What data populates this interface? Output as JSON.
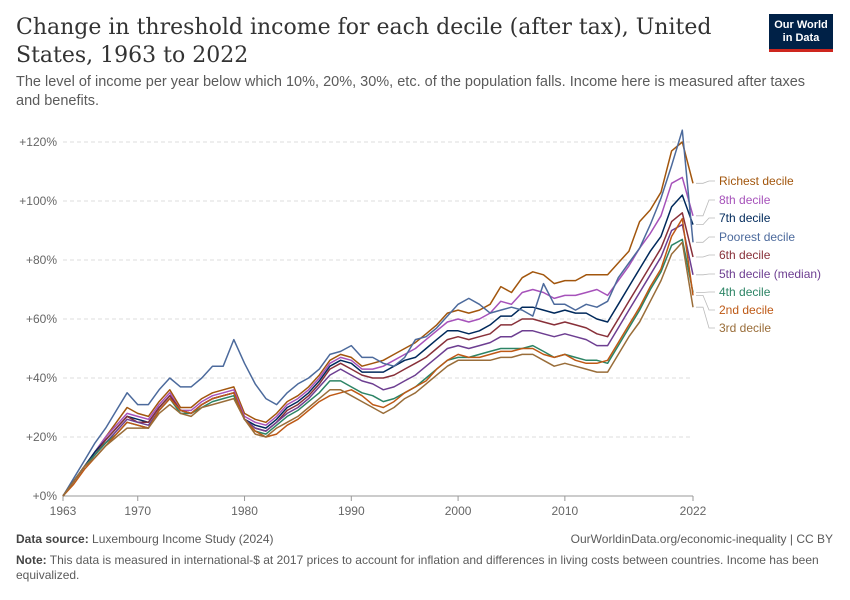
{
  "header": {
    "title": "Change in threshold income for each decile (after tax), United States, 1963 to 2022",
    "subtitle": "The level of income per year below which 10%, 20%, 30%, etc. of the population falls. Income here is measured after taxes and benefits.",
    "logo_line1": "Our World",
    "logo_line2": "in Data"
  },
  "footer": {
    "source_label": "Data source:",
    "source_value": "Luxembourg Income Study (2024)",
    "url": "OurWorldinData.org/economic-inequality | CC BY",
    "note_label": "Note:",
    "note_value": "This data is measured in international-$ at 2017 prices to account for inflation and differences in living costs between countries. Income has been equivalized."
  },
  "chart_data": {
    "type": "line",
    "x": [
      1963,
      1964,
      1965,
      1966,
      1967,
      1968,
      1969,
      1970,
      1971,
      1972,
      1973,
      1974,
      1975,
      1976,
      1977,
      1978,
      1979,
      1980,
      1981,
      1982,
      1983,
      1984,
      1985,
      1986,
      1987,
      1988,
      1989,
      1990,
      1991,
      1992,
      1993,
      1994,
      1995,
      1996,
      1997,
      1998,
      1999,
      2000,
      2001,
      2002,
      2003,
      2004,
      2005,
      2006,
      2007,
      2008,
      2009,
      2010,
      2011,
      2012,
      2013,
      2014,
      2015,
      2016,
      2017,
      2018,
      2019,
      2020,
      2021,
      2022
    ],
    "xlim": [
      1963,
      2022
    ],
    "ylim": [
      0,
      125
    ],
    "y_ticks": [
      "+0%",
      "+20%",
      "+40%",
      "+60%",
      "+80%",
      "+100%",
      "+120%"
    ],
    "y_tick_values": [
      0,
      20,
      40,
      60,
      80,
      100,
      120
    ],
    "x_ticks": [
      "1963",
      "1970",
      "1980",
      "1990",
      "2000",
      "2010",
      "2022"
    ],
    "x_tick_values": [
      1963,
      1970,
      1980,
      1990,
      2000,
      2010,
      2022
    ],
    "grid": "horizontal dashed",
    "series": [
      {
        "name": "Richest decile",
        "color": "#a2560d",
        "values": [
          0,
          5,
          10,
          15,
          20,
          25,
          30,
          28,
          27,
          32,
          36,
          30,
          30,
          33,
          35,
          36,
          37,
          28,
          26,
          25,
          28,
          32,
          34,
          37,
          41,
          46,
          48,
          47,
          44,
          45,
          46,
          48,
          50,
          52,
          55,
          58,
          62,
          63,
          62,
          63,
          65,
          71,
          69,
          74,
          76,
          75,
          72,
          73,
          73,
          75,
          75,
          75,
          79,
          83,
          93,
          97,
          103,
          117,
          120,
          106
        ]
      },
      {
        "name": "8th decile",
        "color": "#a652ba",
        "values": [
          0,
          5,
          10,
          15,
          20,
          24,
          28,
          27,
          26,
          31,
          35,
          29,
          29,
          32,
          34,
          35,
          36,
          27,
          25,
          24,
          27,
          31,
          33,
          36,
          40,
          45,
          47,
          46,
          43,
          43,
          44,
          46,
          48,
          50,
          53,
          56,
          59,
          60,
          59,
          60,
          62,
          66,
          65,
          69,
          70,
          69,
          67,
          68,
          68,
          69,
          70,
          68,
          73,
          78,
          84,
          89,
          95,
          106,
          108,
          95
        ]
      },
      {
        "name": "7th decile",
        "color": "#00295b",
        "values": [
          0,
          5,
          10,
          15,
          19,
          23,
          27,
          26,
          25,
          30,
          34,
          29,
          28,
          31,
          33,
          34,
          35,
          26,
          24,
          23,
          26,
          30,
          32,
          35,
          39,
          44,
          46,
          45,
          42,
          42,
          42,
          44,
          46,
          47,
          50,
          53,
          56,
          56,
          55,
          56,
          58,
          61,
          61,
          64,
          64,
          63,
          62,
          63,
          62,
          62,
          60,
          59,
          65,
          71,
          77,
          83,
          88,
          98,
          102,
          92
        ]
      },
      {
        "name": "Poorest decile",
        "color": "#4c6a9c",
        "values": [
          0,
          6,
          12,
          18,
          23,
          29,
          35,
          31,
          31,
          36,
          40,
          37,
          37,
          40,
          44,
          44,
          53,
          45,
          38,
          33,
          31,
          35,
          38,
          40,
          43,
          48,
          49,
          51,
          47,
          47,
          45,
          44,
          47,
          53,
          54,
          57,
          61,
          65,
          67,
          65,
          62,
          63,
          64,
          63,
          61,
          72,
          65,
          65,
          63,
          65,
          64,
          66,
          74,
          79,
          84,
          92,
          101,
          112,
          124,
          86
        ]
      },
      {
        "name": "6th decile",
        "color": "#883039",
        "values": [
          0,
          5,
          10,
          14,
          19,
          23,
          27,
          25,
          25,
          30,
          34,
          29,
          28,
          31,
          33,
          34,
          35,
          26,
          23,
          22,
          25,
          29,
          31,
          34,
          38,
          43,
          45,
          43,
          41,
          40,
          40,
          41,
          43,
          45,
          47,
          50,
          53,
          54,
          53,
          54,
          55,
          58,
          58,
          60,
          60,
          59,
          58,
          59,
          58,
          57,
          55,
          54,
          60,
          66,
          72,
          78,
          84,
          93,
          96,
          81
        ]
      },
      {
        "name": "5th decile (median)",
        "color": "#6d3e91",
        "values": [
          0,
          5,
          10,
          14,
          18,
          22,
          26,
          25,
          24,
          29,
          33,
          29,
          28,
          31,
          33,
          34,
          35,
          26,
          23,
          22,
          25,
          28,
          30,
          33,
          37,
          41,
          43,
          41,
          39,
          38,
          36,
          37,
          39,
          41,
          44,
          47,
          50,
          51,
          50,
          51,
          52,
          54,
          54,
          56,
          56,
          55,
          54,
          55,
          54,
          53,
          51,
          51,
          57,
          63,
          69,
          75,
          81,
          90,
          92,
          75
        ]
      },
      {
        "name": "4th decile",
        "color": "#2c8465",
        "values": [
          0,
          5,
          10,
          14,
          18,
          21,
          25,
          24,
          23,
          29,
          33,
          28,
          28,
          30,
          32,
          33,
          34,
          26,
          22,
          21,
          24,
          27,
          29,
          32,
          35,
          39,
          39,
          37,
          35,
          34,
          32,
          33,
          35,
          37,
          40,
          43,
          46,
          47,
          47,
          48,
          49,
          50,
          50,
          50,
          51,
          49,
          47,
          48,
          47,
          46,
          46,
          45,
          51,
          57,
          63,
          70,
          76,
          85,
          87,
          69
        ]
      },
      {
        "name": "2nd decile",
        "color": "#be5915",
        "values": [
          0,
          4,
          9,
          13,
          17,
          21,
          25,
          24,
          23,
          29,
          33,
          29,
          28,
          31,
          33,
          34,
          35,
          26,
          22,
          20,
          21,
          24,
          26,
          29,
          32,
          34,
          35,
          36,
          34,
          31,
          30,
          32,
          35,
          37,
          39,
          43,
          46,
          48,
          47,
          47,
          48,
          49,
          49,
          50,
          50,
          48,
          47,
          48,
          46,
          45,
          45,
          46,
          52,
          58,
          64,
          71,
          77,
          88,
          94,
          68
        ]
      },
      {
        "name": "3rd decile",
        "color": "#996d39",
        "values": [
          0,
          5,
          10,
          13,
          17,
          20,
          23,
          23,
          23,
          28,
          31,
          28,
          27,
          30,
          31,
          32,
          33,
          26,
          21,
          20,
          23,
          25,
          27,
          30,
          33,
          36,
          36,
          34,
          32,
          30,
          28,
          30,
          33,
          35,
          38,
          41,
          44,
          46,
          46,
          46,
          46,
          47,
          47,
          48,
          48,
          46,
          44,
          45,
          44,
          43,
          42,
          42,
          48,
          54,
          59,
          66,
          73,
          82,
          86,
          64
        ]
      }
    ]
  }
}
